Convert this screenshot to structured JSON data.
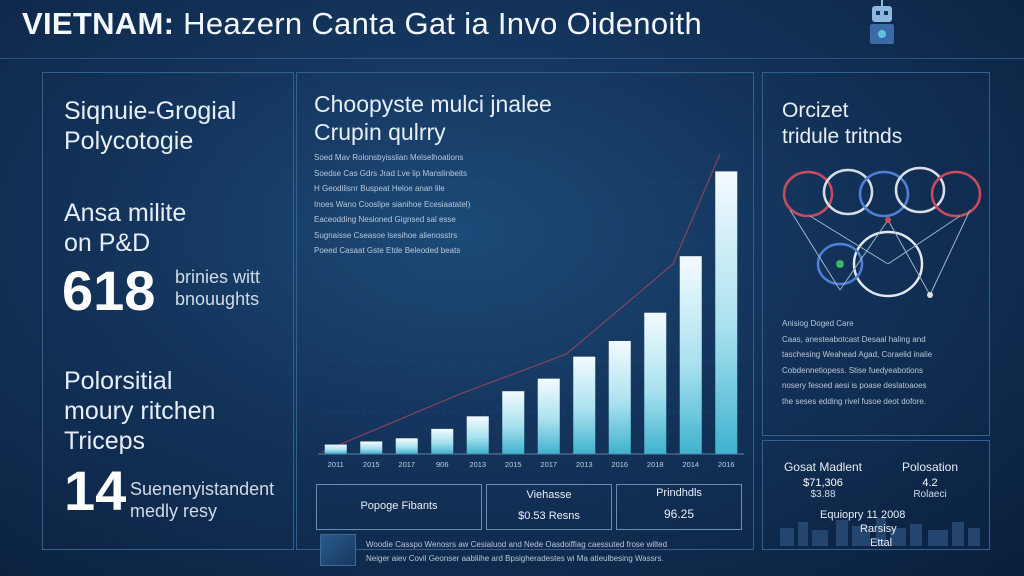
{
  "header": {
    "title_bold": "VIETNAM:",
    "title_rest": "Heazern Canta Gat ia Invo Oidenoith"
  },
  "left": {
    "section1": [
      "Siqnuie-Grogial",
      "Polycotogie"
    ],
    "section2": [
      "Ansa milite",
      "on P&D"
    ],
    "stat1": {
      "value": "618",
      "caption": [
        "brinies witt",
        "bnouughts"
      ]
    },
    "section3": [
      "Polorsitial",
      "moury ritchen",
      "Triceps"
    ],
    "stat2": {
      "value": "14",
      "caption": [
        "Suenenyistandent",
        "medly resy"
      ]
    }
  },
  "center": {
    "heading": [
      "Choopyste mulci jnalee",
      "Crupin qulrry"
    ],
    "notes": [
      "Soed Mav Rolonsbyisslian Melselhoations",
      "Soedse Cas Gdrs Jrad Lve lip Manslinbeits",
      "H Geodilisnr Buspeat Heloe anan lile",
      "Inoes Wano Cooslipe sianihoe Ecesiaatatel)",
      "Eaceodding Nesioned Gignsed sal esse",
      "Sugnaisse Cseasoe lsesihoe alienosstrs",
      "Poeed Casaat Gste Etde Beleoded beats"
    ],
    "boxes": [
      {
        "label": "Popoge Fibants",
        "sub": ""
      },
      {
        "label": "Viehasse",
        "sub": "$0.53 Resns"
      },
      {
        "label": "Prindhdls",
        "sub": "96.25"
      }
    ]
  },
  "chart_data": {
    "type": "bar",
    "title": "Choopyste mulci jnalee Crupin qulrry",
    "categories": [
      "2011",
      "2015",
      "2017",
      "906",
      "2013",
      "2015",
      "2017",
      "2013",
      "2016",
      "2018",
      "2014",
      "2016"
    ],
    "values": [
      3,
      4,
      5,
      8,
      12,
      20,
      24,
      31,
      36,
      45,
      63,
      90
    ],
    "ylim": [
      0,
      100
    ],
    "xlabel": "",
    "ylabel": ""
  },
  "right": {
    "heading": [
      "Orcizet",
      "tridule tritnds"
    ],
    "paragraph": [
      "Anisiog Doged Care",
      "Caas, anesteabotcast Desaal haling and",
      "taschesing Weahead Agad, Coraelid inalie",
      "Cobdennetiopess. Stise fuedyeabotions",
      "nosery fesoed aesi is poase deslatoaoes",
      "the seses edding rivel fusoe deot dofore."
    ],
    "stat1": {
      "label": "Gosat Madlent",
      "value": "$71,306",
      "sub": "$3.88"
    },
    "stat2": {
      "label": "Polosation",
      "value": "4.2",
      "sub": "Rolaeci"
    },
    "footer": [
      "Equiopry 11 2008",
      "Rarsisy",
      "Ettal"
    ]
  },
  "bottom": {
    "text": [
      "Woodie Casspo Wenosrs aw Cesialuod and Nede Oasdoiffiag caessuted frose wilted",
      "Neiger aiev Covil Geonser aabliihe ard Bpsigheradestes wi Ma atieulbesing Wassrs."
    ]
  },
  "colors": {
    "accent": "#5ec4dc",
    "line": "#b2465f"
  }
}
